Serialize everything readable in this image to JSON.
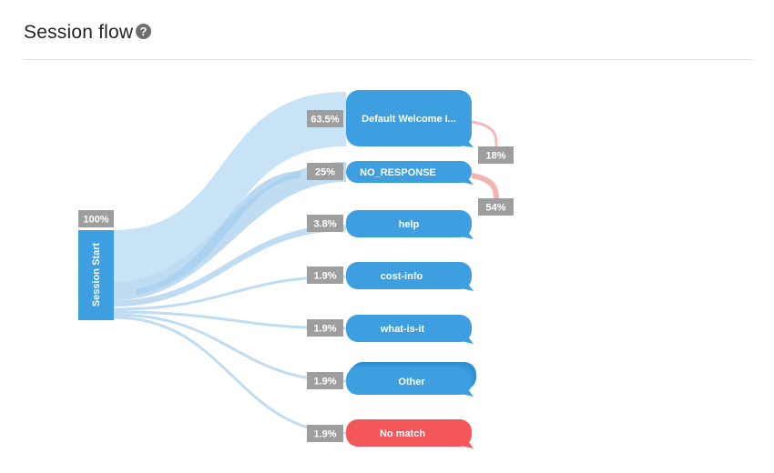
{
  "header": {
    "title": "Session flow",
    "help_icon": "question-circle-icon"
  },
  "colors": {
    "node": "#3d9fe0",
    "no_match": "#f4575a",
    "band": "#c9e3f6",
    "badge": "#9e9e9e",
    "exit": "#f6b3b3"
  },
  "start": {
    "label": "Session Start",
    "pct": "100%"
  },
  "nodes": [
    {
      "label": "Default Welcome I...",
      "pct": "63.5%",
      "share": 63.5
    },
    {
      "label": "NO_RESPONSE",
      "pct": "25%",
      "share": 25
    },
    {
      "label": "help",
      "pct": "3.8%",
      "share": 3.8
    },
    {
      "label": "cost-info",
      "pct": "1.9%",
      "share": 1.9
    },
    {
      "label": "what-is-it",
      "pct": "1.9%",
      "share": 1.9
    },
    {
      "label": "Other",
      "pct": "1.9%",
      "share": 1.9
    },
    {
      "label": "No match",
      "pct": "1.9%",
      "share": 1.9
    }
  ],
  "transitions": [
    {
      "from": "Default Welcome I...",
      "to": "NO_RESPONSE",
      "pct": "18%"
    },
    {
      "from": "NO_RESPONSE",
      "to": "help",
      "pct": "54%"
    }
  ]
}
